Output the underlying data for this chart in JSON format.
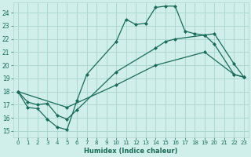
{
  "xlabel": "Humidex (Indice chaleur)",
  "xlim": [
    -0.5,
    23.5
  ],
  "ylim": [
    14.5,
    24.8
  ],
  "yticks": [
    15,
    16,
    17,
    18,
    19,
    20,
    21,
    22,
    23,
    24
  ],
  "xticks": [
    0,
    1,
    2,
    3,
    4,
    5,
    6,
    7,
    8,
    9,
    10,
    11,
    12,
    13,
    14,
    15,
    16,
    17,
    18,
    19,
    20,
    21,
    22,
    23
  ],
  "background_color": "#d0eeea",
  "grid_color": "#b0d8d2",
  "line_color": "#1a6b5a",
  "line1_x": [
    0,
    1,
    2,
    3,
    4,
    5,
    6,
    7,
    10,
    11,
    12,
    13,
    14,
    15,
    16,
    17,
    18,
    19,
    20,
    22,
    23
  ],
  "line1_y": [
    18,
    16.8,
    16.7,
    15.9,
    15.3,
    15.1,
    17.3,
    19.3,
    21.8,
    23.5,
    23.1,
    23.2,
    24.4,
    24.5,
    24.5,
    22.6,
    22.4,
    22.3,
    22.4,
    20.1,
    19.1
  ],
  "line2_x": [
    0,
    1,
    2,
    3,
    4,
    5,
    6,
    10,
    14,
    15,
    16,
    19,
    20,
    22,
    23
  ],
  "line2_y": [
    18,
    17.2,
    17.0,
    17.1,
    16.2,
    15.9,
    16.6,
    19.5,
    21.3,
    21.8,
    22.0,
    22.3,
    21.6,
    19.3,
    19.1
  ],
  "line3_x": [
    0,
    5,
    10,
    14,
    19,
    22,
    23
  ],
  "line3_y": [
    18.0,
    16.8,
    18.5,
    20.0,
    21.0,
    19.3,
    19.1
  ]
}
